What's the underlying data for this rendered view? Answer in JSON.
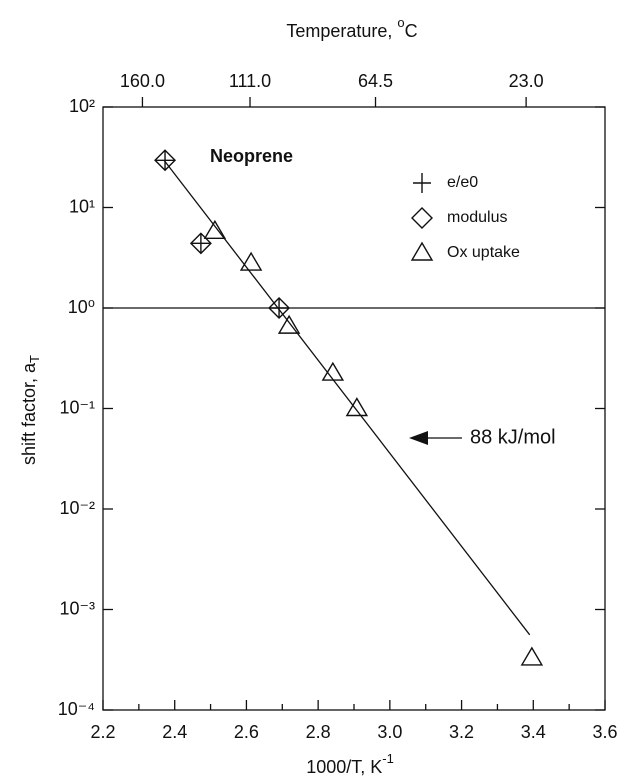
{
  "chart_data": {
    "type": "scatter",
    "annotation": "Neoprene",
    "arrow_label": "88 kJ/mol",
    "xlabel": [
      "1000/T, K",
      "-1"
    ],
    "ylabel": [
      "shift factor, a",
      "T"
    ],
    "x2label": [
      "Temperature, ",
      "o",
      "C"
    ],
    "xlim": [
      2.2,
      3.6
    ],
    "xticks": [
      2.2,
      2.4,
      2.6,
      2.8,
      {
        "value": 3.0,
        "label": "3.0"
      },
      3.2,
      3.4,
      3.6
    ],
    "xminorticks": [
      2.3,
      2.5,
      2.7,
      2.9,
      3.1,
      3.3,
      3.5
    ],
    "x2ticks": [
      {
        "value": 2.31,
        "label": "160.0"
      },
      {
        "value": 2.61,
        "label": "111.0"
      },
      {
        "value": 2.96,
        "label": "64.5"
      },
      {
        "value": 3.38,
        "label": "23.0"
      }
    ],
    "ylim": [
      0.0001,
      100
    ],
    "log_y": true,
    "yticks": [
      {
        "value": 0.0001,
        "label": "10⁻⁴"
      },
      {
        "value": 0.001,
        "label": "10⁻³"
      },
      {
        "value": 0.01,
        "label": "10⁻²"
      },
      {
        "value": 0.1,
        "label": "10⁻¹"
      },
      {
        "value": 1,
        "label": "10⁰"
      },
      {
        "value": 10,
        "label": "10¹"
      },
      {
        "value": 100,
        "label": "10²"
      }
    ],
    "hline": [
      1
    ],
    "series": [
      {
        "name": "e/e0",
        "marker": "plus",
        "color": "#111111",
        "x": [
          2.373,
          2.473,
          2.691
        ],
        "values": [
          29.5,
          4.4,
          1.0
        ]
      },
      {
        "name": "modulus",
        "marker": "diamond",
        "color": "#111111",
        "x": [
          2.373,
          2.473,
          2.691
        ],
        "values": [
          29.5,
          4.4,
          1.0
        ]
      },
      {
        "name": "Ox uptake",
        "marker": "triangle",
        "color": "#111111",
        "x": [
          2.512,
          2.613,
          2.719,
          2.841,
          2.908,
          3.396
        ],
        "values": [
          5.8,
          2.8,
          0.66,
          0.225,
          0.1,
          0.00033
        ]
      }
    ],
    "fit": {
      "x": [
        2.37,
        3.39
      ],
      "values": [
        29.6,
        0.00056
      ]
    }
  }
}
